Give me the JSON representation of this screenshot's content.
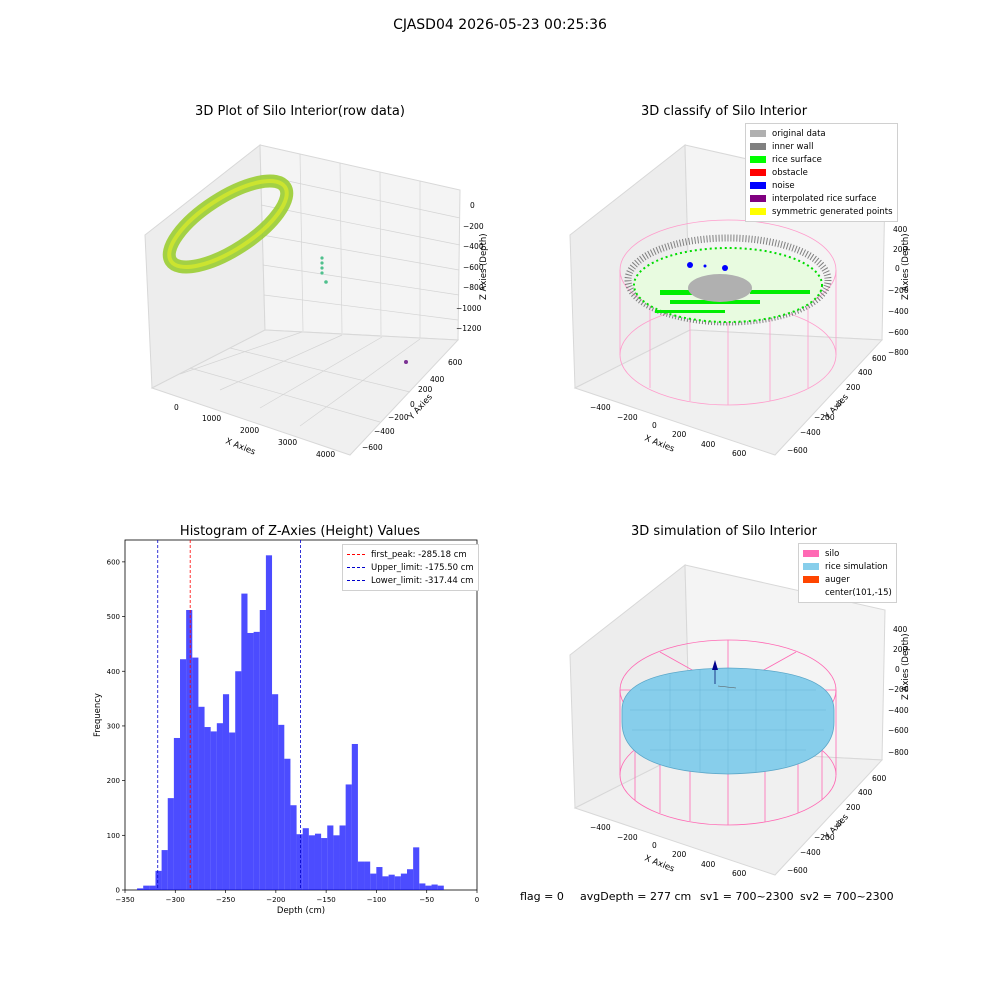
{
  "figure": {
    "suptitle": "CJASD04 2026-05-23 00:25:36",
    "footer": {
      "flag": "flag = 0",
      "avg": "avgDepth = 277 cm",
      "sv1": "sv1 = 700~2300",
      "sv2": "sv2 = 700~2300"
    }
  },
  "colors": {
    "hist_bar": "#0000ff",
    "first_peak": "#ff0000",
    "limits": "#0000cc",
    "silo": "#ff69b4",
    "rice": "#87ceeb",
    "auger": "#ff4500",
    "grid": "#cccccc",
    "pane": "#f2f2f2"
  },
  "plot1": {
    "title": "3D Plot of Silo Interior(row data)",
    "xlabel": "X Axies",
    "ylabel": "Y Axies",
    "zlabel": "Z Axies (Depth)",
    "xticks": [
      "0",
      "1000",
      "2000",
      "3000",
      "4000"
    ],
    "yticks": [
      "600",
      "400",
      "200",
      "0",
      "−200",
      "−400",
      "−600"
    ],
    "zticks": [
      "0",
      "−200",
      "−400",
      "−600",
      "−800",
      "−1000",
      "−1200"
    ]
  },
  "plot2": {
    "title": "3D classify of Silo Interior",
    "xlabel": "X Axies",
    "ylabel": "Y Axies",
    "zlabel": "Z Axies (Depth)",
    "xticks": [
      "−400",
      "−200",
      "0",
      "200",
      "400",
      "600"
    ],
    "yticks": [
      "600",
      "400",
      "200",
      "0",
      "−200",
      "−400",
      "−600"
    ],
    "zticks": [
      "400",
      "200",
      "0",
      "−200",
      "−400",
      "−600",
      "−800"
    ],
    "legend": [
      {
        "label": "original data",
        "color": "#b0b0b0"
      },
      {
        "label": "inner wall",
        "color": "#808080"
      },
      {
        "label": "rice surface",
        "color": "#00ff00"
      },
      {
        "label": "obstacle",
        "color": "#ff0000"
      },
      {
        "label": "noise",
        "color": "#0000ff"
      },
      {
        "label": "interpolated rice surface",
        "color": "#800080"
      },
      {
        "label": "symmetric generated points",
        "color": "#ffff00"
      }
    ]
  },
  "plot4": {
    "title": "3D simulation of Silo Interior",
    "xlabel": "X Axies",
    "ylabel": "Y Axies",
    "zlabel": "Z Axies (Depth)",
    "xticks": [
      "−400",
      "−200",
      "0",
      "200",
      "400",
      "600"
    ],
    "yticks": [
      "600",
      "400",
      "200",
      "0",
      "−200",
      "−400",
      "−600"
    ],
    "zticks": [
      "400",
      "200",
      "0",
      "−200",
      "−400",
      "−600",
      "−800"
    ],
    "legend": [
      {
        "label": "silo",
        "color": "#ff69b4"
      },
      {
        "label": "rice simulation",
        "color": "#87ceeb"
      },
      {
        "label": "auger",
        "color": "#ff4500"
      },
      {
        "label": "center(101,-15)",
        "color": ""
      }
    ]
  },
  "chart_data": {
    "type": "bar",
    "title": "Histogram of Z-Axies (Height) Values",
    "xlabel": "Depth (cm)",
    "ylabel": "Frequency",
    "xlim": [
      -350,
      0
    ],
    "ylim": [
      0,
      640
    ],
    "xticks": [
      -350,
      -300,
      -250,
      -200,
      -150,
      -100,
      -50,
      0
    ],
    "yticks": [
      0,
      100,
      200,
      300,
      400,
      500,
      600
    ],
    "bin_start": -338.0,
    "bin_width": 6.1,
    "values": [
      3,
      8,
      8,
      35,
      73,
      168,
      278,
      422,
      512,
      425,
      335,
      298,
      290,
      305,
      358,
      288,
      400,
      542,
      470,
      472,
      512,
      612,
      358,
      302,
      240,
      155,
      102,
      113,
      100,
      103,
      95,
      118,
      100,
      118,
      193,
      267,
      52,
      52,
      30,
      42,
      25,
      28,
      25,
      30,
      38,
      78,
      12,
      8,
      10,
      8
    ],
    "lines": [
      {
        "label": "first_peak: -285.18 cm",
        "x": -285.18,
        "color": "#ff0000"
      },
      {
        "label": "Upper_limit: -175.50 cm",
        "x": -175.5,
        "color": "#0000cc"
      },
      {
        "label": "Lower_limit: -317.44 cm",
        "x": -317.44,
        "color": "#0000cc"
      }
    ],
    "legend_position": "top-right"
  }
}
